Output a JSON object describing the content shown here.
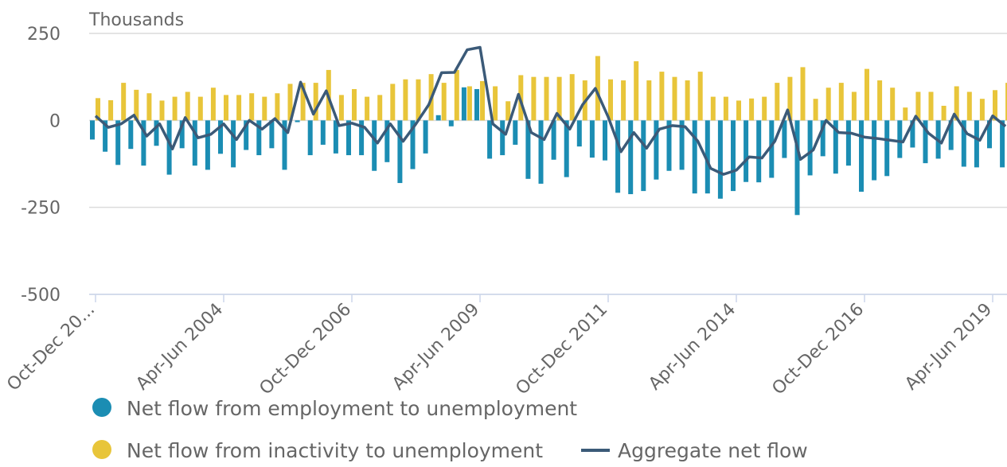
{
  "chart_data": {
    "type": "bar-line",
    "y_axis_title": "Thousands",
    "categories": [
      "Oct-Dec 20...",
      null,
      null,
      null,
      null,
      null,
      null,
      null,
      null,
      null,
      "Apr-Jun 2004",
      null,
      null,
      null,
      null,
      null,
      null,
      null,
      null,
      null,
      "Oct-Dec 2006",
      null,
      null,
      null,
      null,
      null,
      null,
      null,
      null,
      null,
      "Apr-Jun 2009",
      null,
      null,
      null,
      null,
      null,
      null,
      null,
      null,
      null,
      "Oct-Dec 2011",
      null,
      null,
      null,
      null,
      null,
      null,
      null,
      null,
      null,
      "Apr-Jun 2014",
      null,
      null,
      null,
      null,
      null,
      null,
      null,
      null,
      null,
      "Oct-Dec 2016",
      null,
      null,
      null,
      null,
      null,
      null,
      null,
      null,
      null,
      "Apr-Jun 2019",
      null
    ],
    "series": [
      {
        "name": "Net flow from employment to unemployment",
        "color": "#1b8db3",
        "kind": "bar",
        "values": [
          -55,
          -90,
          -128,
          -82,
          -130,
          -73,
          -156,
          -80,
          -130,
          -142,
          -96,
          -135,
          -85,
          -100,
          -80,
          -142,
          -5,
          -100,
          -70,
          -95,
          -100,
          -100,
          -145,
          -120,
          -180,
          -140,
          -95,
          15,
          -17,
          95,
          90,
          -110,
          -100,
          -70,
          -168,
          -182,
          -113,
          -163,
          -75,
          -107,
          -115,
          -208,
          -212,
          -203,
          -170,
          -145,
          -142,
          -210,
          -210,
          -225,
          -203,
          -177,
          -178,
          -165,
          -108,
          -272,
          -158,
          -103,
          -153,
          -130,
          -205,
          -172,
          -160,
          -108,
          -78,
          -123,
          -110,
          -85,
          -133,
          -135,
          -80,
          -135
        ]
      },
      {
        "name": "Net flow from inactivity to unemployment",
        "color": "#e8c53a",
        "kind": "bar",
        "values": [
          64,
          58,
          108,
          88,
          78,
          57,
          68,
          82,
          68,
          94,
          73,
          73,
          78,
          68,
          78,
          105,
          108,
          108,
          145,
          73,
          90,
          68,
          73,
          105,
          118,
          118,
          133,
          108,
          145,
          98,
          113,
          98,
          55,
          130,
          125,
          125,
          125,
          133,
          115,
          185,
          118,
          115,
          170,
          115,
          140,
          125,
          115,
          140,
          68,
          68,
          57,
          63,
          68,
          108,
          125,
          153,
          62,
          94,
          108,
          82,
          148,
          115,
          94,
          37,
          82,
          82,
          42,
          98,
          82,
          62,
          87,
          108
        ]
      },
      {
        "name": "Aggregate net flow",
        "color": "#3b5a78",
        "kind": "line",
        "values": [
          13,
          -20,
          -10,
          15,
          -45,
          -10,
          -82,
          8,
          -50,
          -40,
          -10,
          -55,
          0,
          -25,
          5,
          -35,
          110,
          18,
          85,
          -15,
          -8,
          -20,
          -65,
          -10,
          -60,
          -10,
          45,
          137,
          138,
          203,
          210,
          -10,
          -40,
          75,
          -35,
          -55,
          20,
          -25,
          45,
          92,
          10,
          -90,
          -35,
          -80,
          -25,
          -15,
          -18,
          -60,
          -138,
          -155,
          -143,
          -105,
          -108,
          -60,
          30,
          -112,
          -85,
          0,
          -35,
          -37,
          -48,
          -52,
          -57,
          -62,
          12,
          -37,
          -65,
          18,
          -38,
          -57,
          13,
          -17
        ]
      }
    ],
    "ylim": [
      -500,
      250
    ],
    "yticks": [
      -500,
      -250,
      0,
      250
    ],
    "grid": true
  }
}
